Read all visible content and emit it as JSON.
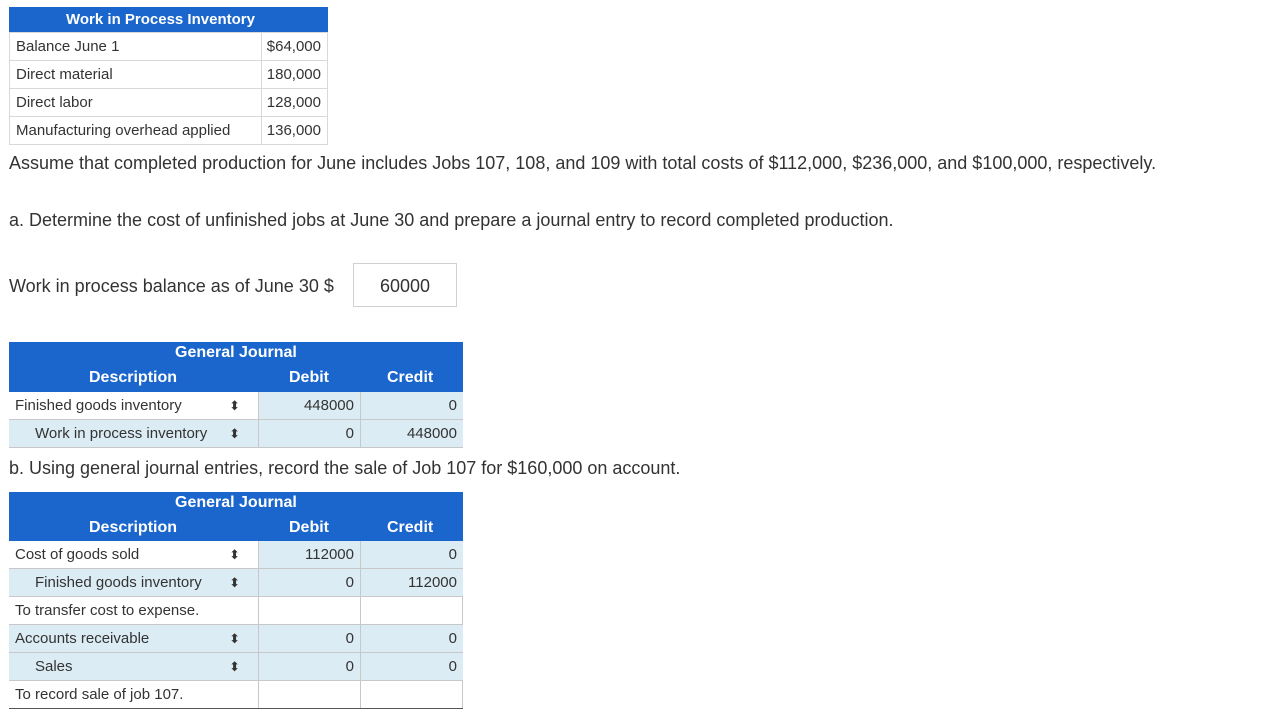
{
  "wip_table": {
    "title": "Work in Process Inventory",
    "rows": [
      {
        "label": "Balance June 1",
        "value": "$64,000"
      },
      {
        "label": "Direct material",
        "value": "180,000"
      },
      {
        "label": "Direct labor",
        "value": "128,000"
      },
      {
        "label": "Manufacturing overhead applied",
        "value": "136,000"
      }
    ]
  },
  "assumption": "Assume that completed production for June includes Jobs 107, 108, and 109 with total costs of $112,000, $236,000, and $100,000, respectively.",
  "part_a": {
    "prompt": "a. Determine the cost of unfinished jobs at June 30 and prepare a journal entry to record completed production.",
    "wip_label": "Work in process balance as of June 30 $",
    "wip_value": "60000"
  },
  "journal_a": {
    "title": "General Journal",
    "headers": {
      "description": "Description",
      "debit": "Debit",
      "credit": "Credit"
    },
    "rows": [
      {
        "description": "Finished goods inventory",
        "debit": "448000",
        "credit": "0"
      },
      {
        "description": "Work in process inventory",
        "debit": "0",
        "credit": "448000"
      }
    ]
  },
  "part_b": {
    "prompt": "b. Using general journal entries, record the sale of Job 107 for $160,000 on account."
  },
  "journal_b": {
    "title": "General Journal",
    "headers": {
      "description": "Description",
      "debit": "Debit",
      "credit": "Credit"
    },
    "rows": [
      {
        "description": "Cost of goods sold",
        "debit": "112000",
        "credit": "0"
      },
      {
        "description": "Finished goods inventory",
        "debit": "0",
        "credit": "112000"
      },
      {
        "description": "To transfer cost to expense.",
        "debit": "",
        "credit": ""
      },
      {
        "description": "Accounts receivable",
        "debit": "0",
        "credit": "0"
      },
      {
        "description": "Sales",
        "debit": "0",
        "credit": "0"
      },
      {
        "description": "To record sale of job 107.",
        "debit": "",
        "credit": ""
      }
    ]
  },
  "icons": {
    "select_arrows": "up-down-arrows-icon"
  }
}
